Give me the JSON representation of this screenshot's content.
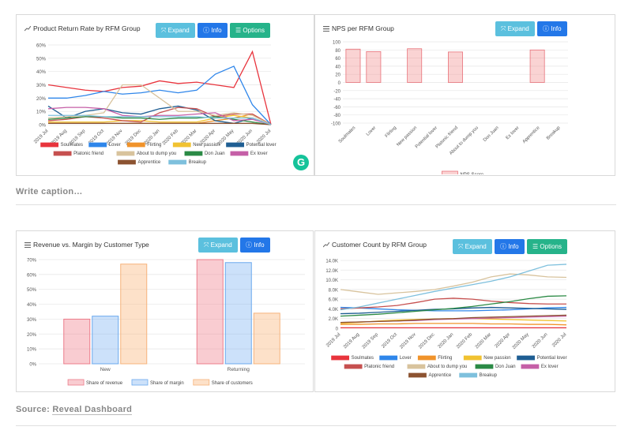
{
  "page": {
    "caption_placeholder": "Write caption…",
    "source_prefix": "Source: ",
    "source_link": "Reveal Dashboard",
    "grammarly_letter": "G"
  },
  "buttons": {
    "expand": "Expand",
    "info": "Info",
    "options": "Options"
  },
  "months": [
    "2019 Jul",
    "2019 Aug",
    "2019 Sep",
    "2019 Oct",
    "2019 Nov",
    "2019 Dec",
    "2020 Jan",
    "2020 Feb",
    "2020 Mar",
    "2020 Apr",
    "2020 May",
    "2020 Jun",
    "2020 Jul"
  ],
  "colors": {
    "Soulmates": "#e8343d",
    "Lover": "#2f86ea",
    "Flirting": "#f0932b",
    "New passion": "#f1c231",
    "Potential lover": "#1f5e93",
    "Platonic friend": "#c6504f",
    "About to dump you": "#d8c39d",
    "Don Juan": "#2b8a45",
    "Ex lover": "#c55fa7",
    "Apprentice": "#8c5331",
    "Breakup": "#7ec0dd"
  },
  "chart_data": [
    {
      "type": "line",
      "title": "Product Return Rate by RFM Group",
      "ylim": [
        0,
        60
      ],
      "yticks": [
        "0%",
        "10%",
        "20%",
        "30%",
        "40%",
        "50%",
        "60%"
      ],
      "series": [
        {
          "name": "Soulmates",
          "values": [
            30,
            28,
            26,
            25,
            28,
            29,
            33,
            31,
            32,
            30,
            28,
            55,
            0
          ]
        },
        {
          "name": "Lover",
          "values": [
            20,
            20,
            22,
            25,
            23,
            24,
            26,
            24,
            26,
            38,
            44,
            15,
            0
          ]
        },
        {
          "name": "Flirting",
          "values": [
            1,
            1,
            1,
            1,
            1,
            1,
            1,
            1,
            1,
            3,
            5,
            8,
            0
          ]
        },
        {
          "name": "New passion",
          "values": [
            2,
            2,
            2,
            2,
            3,
            3,
            2,
            2,
            2,
            5,
            7,
            5,
            0
          ]
        },
        {
          "name": "Potential lover",
          "values": [
            14,
            5,
            10,
            12,
            9,
            8,
            12,
            14,
            11,
            3,
            1,
            5,
            0
          ]
        },
        {
          "name": "Platonic friend",
          "values": [
            3,
            4,
            6,
            5,
            3,
            2,
            9,
            13,
            12,
            6,
            8,
            8,
            0
          ]
        },
        {
          "name": "About to dump you",
          "values": [
            5,
            6,
            7,
            9,
            30,
            30,
            20,
            10,
            10,
            7,
            9,
            7,
            0
          ]
        },
        {
          "name": "Don Juan",
          "values": [
            4,
            5,
            6,
            6,
            5,
            5,
            4,
            5,
            5,
            6,
            4,
            2,
            0
          ]
        },
        {
          "name": "Ex lover",
          "values": [
            12,
            13,
            13,
            12,
            7,
            6,
            7,
            7,
            8,
            9,
            3,
            4,
            0
          ]
        },
        {
          "name": "Apprentice",
          "values": [
            1,
            1,
            1,
            1,
            1,
            1,
            1,
            1,
            1,
            1,
            1,
            1,
            0
          ]
        },
        {
          "name": "Breakup",
          "values": [
            7,
            7,
            7,
            6,
            6,
            6,
            6,
            6,
            6,
            5,
            5,
            5,
            0
          ]
        }
      ],
      "legend": [
        "Soulmates",
        "Lover",
        "Flirting",
        "New passion",
        "Potential lover",
        "Platonic friend",
        "About to dump you",
        "Don Juan",
        "Ex lover",
        "Apprentice",
        "Breakup"
      ]
    },
    {
      "type": "bar",
      "title": "NPS per RFM Group",
      "categories": [
        "Soulmates",
        "Lover",
        "Flirting",
        "New passion",
        "Potential lover",
        "Platonic friend",
        "About to dump you",
        "Don Juan",
        "Ex lover",
        "Apprentice",
        "Breakup"
      ],
      "values": [
        82,
        76,
        0,
        83,
        0,
        75,
        0,
        0,
        0,
        80,
        0
      ],
      "ylim": [
        -100,
        100
      ],
      "yticks": [
        100,
        80,
        60,
        40,
        20,
        0,
        -20,
        -40,
        -60,
        -80,
        -100
      ],
      "legend": [
        "NPS Score"
      ]
    },
    {
      "type": "bar",
      "title": "Revenue vs. Margin by Customer Type",
      "categories": [
        "New",
        "Returning"
      ],
      "series": [
        {
          "name": "Share of revenue",
          "values": [
            30,
            70
          ]
        },
        {
          "name": "Share of margin",
          "values": [
            32,
            68
          ]
        },
        {
          "name": "Share of customers",
          "values": [
            67,
            34
          ]
        }
      ],
      "ylim": [
        0,
        70
      ],
      "yticks": [
        "0%",
        "10%",
        "20%",
        "30%",
        "40%",
        "50%",
        "60%",
        "70%"
      ]
    },
    {
      "type": "line",
      "title": "Customer Count by RFM Group",
      "ylim": [
        0,
        14000
      ],
      "yticks": [
        "0",
        "2.0K",
        "4.0K",
        "6.0K",
        "8.0K",
        "10.0K",
        "12.0K",
        "14.0K"
      ],
      "series": [
        {
          "name": "Soulmates",
          "values": [
            100,
            100,
            100,
            100,
            100,
            100,
            100,
            100,
            100,
            100,
            100,
            100,
            100
          ]
        },
        {
          "name": "Lover",
          "values": [
            4300,
            4200,
            4000,
            3800,
            3700,
            3600,
            3600,
            3600,
            3700,
            3800,
            4000,
            4200,
            4300
          ]
        },
        {
          "name": "Flirting",
          "values": [
            800,
            800,
            900,
            900,
            1000,
            1000,
            1000,
            1000,
            900,
            900,
            800,
            800,
            700
          ]
        },
        {
          "name": "New passion",
          "values": [
            1000,
            1200,
            1500,
            1700,
            1800,
            1900,
            2000,
            2000,
            1900,
            1800,
            1700,
            1600,
            1500
          ]
        },
        {
          "name": "Potential lover",
          "values": [
            3000,
            3100,
            3300,
            3500,
            3700,
            3900,
            4000,
            4200,
            4300,
            4200,
            4100,
            4000,
            3900
          ]
        },
        {
          "name": "Platonic friend",
          "values": [
            4000,
            4200,
            4400,
            4700,
            5300,
            6000,
            6200,
            6000,
            5600,
            5300,
            5100,
            5000,
            5000
          ]
        },
        {
          "name": "About to dump you",
          "values": [
            8000,
            7500,
            7000,
            7300,
            7600,
            8000,
            8700,
            9500,
            10600,
            11200,
            11000,
            10600,
            10500
          ]
        },
        {
          "name": "Don Juan",
          "values": [
            2500,
            2700,
            2900,
            3200,
            3500,
            3800,
            4100,
            4500,
            5000,
            5500,
            6100,
            6600,
            6700
          ]
        },
        {
          "name": "Ex lover",
          "values": [
            1200,
            1300,
            1400,
            1500,
            1600,
            1800,
            1900,
            2000,
            2100,
            2200,
            2300,
            2400,
            2500
          ]
        },
        {
          "name": "Apprentice",
          "values": [
            1200,
            1300,
            1400,
            1500,
            1700,
            1900,
            2000,
            2200,
            2300,
            2400,
            2500,
            2600,
            2700
          ]
        },
        {
          "name": "Breakup",
          "values": [
            3800,
            4400,
            5200,
            6000,
            6800,
            7600,
            8300,
            9000,
            9700,
            10600,
            11800,
            13000,
            13200
          ]
        }
      ],
      "legend": [
        "Soulmates",
        "Lover",
        "Flirting",
        "New passion",
        "Potential lover",
        "Platonic friend",
        "About to dump you",
        "Don Juan",
        "Ex lover",
        "Apprentice",
        "Breakup"
      ]
    }
  ]
}
